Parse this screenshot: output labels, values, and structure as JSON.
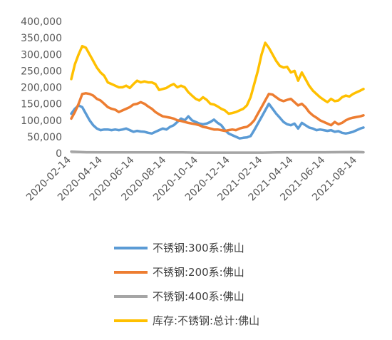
{
  "chart_data": {
    "type": "line",
    "title": "",
    "xlabel": "",
    "ylabel": "",
    "ylim": [
      0,
      400000
    ],
    "y_ticks": [
      "0",
      "50,000",
      "100,000",
      "150,000",
      "200,000",
      "250,000",
      "300,000",
      "350,000",
      "400,000"
    ],
    "x_ticks": [
      "2020-02-14",
      "2020-04-14",
      "2020-06-14",
      "2020-08-14",
      "2020-10-14",
      "2020-12-14",
      "2021-02-14",
      "2021-04-14",
      "2021-06-14",
      "2021-08-14"
    ],
    "x_range": [
      "2020-02-14",
      "2021-08-26"
    ],
    "grid": false,
    "legend_position": "bottom",
    "series": [
      {
        "name": "不锈钢:300系:佛山",
        "color": "#5B9BD5",
        "points": [
          [
            "2020-02-14",
            120000
          ],
          [
            "2020-02-21",
            135000
          ],
          [
            "2020-02-28",
            145000
          ],
          [
            "2020-03-06",
            140000
          ],
          [
            "2020-03-13",
            120000
          ],
          [
            "2020-03-20",
            100000
          ],
          [
            "2020-03-27",
            85000
          ],
          [
            "2020-04-03",
            75000
          ],
          [
            "2020-04-10",
            70000
          ],
          [
            "2020-04-17",
            72000
          ],
          [
            "2020-04-24",
            72000
          ],
          [
            "2020-05-01",
            70000
          ],
          [
            "2020-05-08",
            72000
          ],
          [
            "2020-05-15",
            70000
          ],
          [
            "2020-05-22",
            72000
          ],
          [
            "2020-05-29",
            75000
          ],
          [
            "2020-06-05",
            70000
          ],
          [
            "2020-06-12",
            65000
          ],
          [
            "2020-06-19",
            68000
          ],
          [
            "2020-06-26",
            66000
          ],
          [
            "2020-07-03",
            65000
          ],
          [
            "2020-07-10",
            62000
          ],
          [
            "2020-07-17",
            60000
          ],
          [
            "2020-07-24",
            65000
          ],
          [
            "2020-07-31",
            70000
          ],
          [
            "2020-08-07",
            75000
          ],
          [
            "2020-08-14",
            72000
          ],
          [
            "2020-08-21",
            80000
          ],
          [
            "2020-08-28",
            85000
          ],
          [
            "2020-09-04",
            95000
          ],
          [
            "2020-09-11",
            105000
          ],
          [
            "2020-09-18",
            100000
          ],
          [
            "2020-09-25",
            112000
          ],
          [
            "2020-10-02",
            100000
          ],
          [
            "2020-10-09",
            95000
          ],
          [
            "2020-10-16",
            90000
          ],
          [
            "2020-10-23",
            88000
          ],
          [
            "2020-10-30",
            90000
          ],
          [
            "2020-11-06",
            95000
          ],
          [
            "2020-11-13",
            102000
          ],
          [
            "2020-11-20",
            92000
          ],
          [
            "2020-11-27",
            85000
          ],
          [
            "2020-12-04",
            70000
          ],
          [
            "2020-12-11",
            60000
          ],
          [
            "2020-12-18",
            55000
          ],
          [
            "2020-12-25",
            50000
          ],
          [
            "2021-01-01",
            45000
          ],
          [
            "2021-01-08",
            47000
          ],
          [
            "2021-01-15",
            48000
          ],
          [
            "2021-01-22",
            52000
          ],
          [
            "2021-01-29",
            70000
          ],
          [
            "2021-02-05",
            90000
          ],
          [
            "2021-02-12",
            110000
          ],
          [
            "2021-02-19",
            130000
          ],
          [
            "2021-02-26",
            150000
          ],
          [
            "2021-03-05",
            135000
          ],
          [
            "2021-03-12",
            120000
          ],
          [
            "2021-03-19",
            108000
          ],
          [
            "2021-03-26",
            95000
          ],
          [
            "2021-04-02",
            88000
          ],
          [
            "2021-04-09",
            85000
          ],
          [
            "2021-04-16",
            90000
          ],
          [
            "2021-04-23",
            75000
          ],
          [
            "2021-04-30",
            92000
          ],
          [
            "2021-05-07",
            85000
          ],
          [
            "2021-05-14",
            78000
          ],
          [
            "2021-05-21",
            75000
          ],
          [
            "2021-05-28",
            70000
          ],
          [
            "2021-06-04",
            72000
          ],
          [
            "2021-06-11",
            70000
          ],
          [
            "2021-06-18",
            68000
          ],
          [
            "2021-06-25",
            70000
          ],
          [
            "2021-07-02",
            65000
          ],
          [
            "2021-07-09",
            67000
          ],
          [
            "2021-07-16",
            62000
          ],
          [
            "2021-07-23",
            60000
          ],
          [
            "2021-07-30",
            62000
          ],
          [
            "2021-08-06",
            65000
          ],
          [
            "2021-08-13",
            70000
          ],
          [
            "2021-08-20",
            75000
          ],
          [
            "2021-08-26",
            78000
          ]
        ]
      },
      {
        "name": "不锈钢:200系:佛山",
        "color": "#ED7D31",
        "points": [
          [
            "2020-02-14",
            105000
          ],
          [
            "2020-02-21",
            125000
          ],
          [
            "2020-02-28",
            150000
          ],
          [
            "2020-03-06",
            180000
          ],
          [
            "2020-03-13",
            182000
          ],
          [
            "2020-03-20",
            180000
          ],
          [
            "2020-03-27",
            175000
          ],
          [
            "2020-04-03",
            165000
          ],
          [
            "2020-04-10",
            160000
          ],
          [
            "2020-04-17",
            150000
          ],
          [
            "2020-04-24",
            140000
          ],
          [
            "2020-05-01",
            135000
          ],
          [
            "2020-05-08",
            132000
          ],
          [
            "2020-05-15",
            125000
          ],
          [
            "2020-05-22",
            130000
          ],
          [
            "2020-05-29",
            135000
          ],
          [
            "2020-06-05",
            140000
          ],
          [
            "2020-06-12",
            148000
          ],
          [
            "2020-06-19",
            150000
          ],
          [
            "2020-06-26",
            155000
          ],
          [
            "2020-07-03",
            150000
          ],
          [
            "2020-07-10",
            142000
          ],
          [
            "2020-07-17",
            135000
          ],
          [
            "2020-07-24",
            125000
          ],
          [
            "2020-07-31",
            118000
          ],
          [
            "2020-08-07",
            112000
          ],
          [
            "2020-08-14",
            110000
          ],
          [
            "2020-08-21",
            108000
          ],
          [
            "2020-08-28",
            105000
          ],
          [
            "2020-09-04",
            100000
          ],
          [
            "2020-09-11",
            98000
          ],
          [
            "2020-09-18",
            95000
          ],
          [
            "2020-09-25",
            92000
          ],
          [
            "2020-10-02",
            90000
          ],
          [
            "2020-10-09",
            88000
          ],
          [
            "2020-10-16",
            85000
          ],
          [
            "2020-10-23",
            80000
          ],
          [
            "2020-10-30",
            78000
          ],
          [
            "2020-11-06",
            75000
          ],
          [
            "2020-11-13",
            72000
          ],
          [
            "2020-11-20",
            72000
          ],
          [
            "2020-11-27",
            70000
          ],
          [
            "2020-12-04",
            68000
          ],
          [
            "2020-12-11",
            70000
          ],
          [
            "2020-12-18",
            72000
          ],
          [
            "2020-12-25",
            70000
          ],
          [
            "2021-01-01",
            75000
          ],
          [
            "2021-01-08",
            78000
          ],
          [
            "2021-01-15",
            80000
          ],
          [
            "2021-01-22",
            88000
          ],
          [
            "2021-01-29",
            100000
          ],
          [
            "2021-02-05",
            120000
          ],
          [
            "2021-02-12",
            140000
          ],
          [
            "2021-02-19",
            160000
          ],
          [
            "2021-02-26",
            180000
          ],
          [
            "2021-03-05",
            178000
          ],
          [
            "2021-03-12",
            170000
          ],
          [
            "2021-03-19",
            162000
          ],
          [
            "2021-03-26",
            158000
          ],
          [
            "2021-04-02",
            162000
          ],
          [
            "2021-04-09",
            165000
          ],
          [
            "2021-04-16",
            155000
          ],
          [
            "2021-04-23",
            145000
          ],
          [
            "2021-04-30",
            150000
          ],
          [
            "2021-05-07",
            140000
          ],
          [
            "2021-05-14",
            125000
          ],
          [
            "2021-05-21",
            115000
          ],
          [
            "2021-05-28",
            108000
          ],
          [
            "2021-06-04",
            100000
          ],
          [
            "2021-06-11",
            95000
          ],
          [
            "2021-06-18",
            90000
          ],
          [
            "2021-06-25",
            85000
          ],
          [
            "2021-07-02",
            95000
          ],
          [
            "2021-07-09",
            88000
          ],
          [
            "2021-07-16",
            92000
          ],
          [
            "2021-07-23",
            100000
          ],
          [
            "2021-07-30",
            105000
          ],
          [
            "2021-08-06",
            108000
          ],
          [
            "2021-08-13",
            110000
          ],
          [
            "2021-08-20",
            112000
          ],
          [
            "2021-08-26",
            115000
          ]
        ]
      },
      {
        "name": "不锈钢:400系:佛山",
        "color": "#A5A5A5",
        "points": [
          [
            "2020-02-14",
            5000
          ],
          [
            "2020-03-14",
            3000
          ],
          [
            "2020-04-14",
            2500
          ],
          [
            "2020-05-14",
            2500
          ],
          [
            "2020-06-14",
            2500
          ],
          [
            "2020-07-14",
            2500
          ],
          [
            "2020-08-14",
            2500
          ],
          [
            "2020-09-14",
            2500
          ],
          [
            "2020-10-14",
            2000
          ],
          [
            "2020-11-14",
            2000
          ],
          [
            "2020-12-14",
            2000
          ],
          [
            "2021-01-14",
            2000
          ],
          [
            "2021-02-14",
            2000
          ],
          [
            "2021-03-14",
            2500
          ],
          [
            "2021-04-14",
            3000
          ],
          [
            "2021-05-14",
            3000
          ],
          [
            "2021-06-14",
            3000
          ],
          [
            "2021-07-14",
            3500
          ],
          [
            "2021-08-14",
            4000
          ],
          [
            "2021-08-26",
            3000
          ]
        ]
      },
      {
        "name": "库存:不锈钢:总计:佛山",
        "color": "#FFC000",
        "points": [
          [
            "2020-02-14",
            225000
          ],
          [
            "2020-02-21",
            270000
          ],
          [
            "2020-02-28",
            300000
          ],
          [
            "2020-03-06",
            325000
          ],
          [
            "2020-03-13",
            320000
          ],
          [
            "2020-03-20",
            300000
          ],
          [
            "2020-03-27",
            280000
          ],
          [
            "2020-04-03",
            260000
          ],
          [
            "2020-04-10",
            245000
          ],
          [
            "2020-04-17",
            235000
          ],
          [
            "2020-04-24",
            215000
          ],
          [
            "2020-05-01",
            210000
          ],
          [
            "2020-05-08",
            205000
          ],
          [
            "2020-05-15",
            200000
          ],
          [
            "2020-05-22",
            200000
          ],
          [
            "2020-05-29",
            205000
          ],
          [
            "2020-06-05",
            198000
          ],
          [
            "2020-06-12",
            210000
          ],
          [
            "2020-06-19",
            220000
          ],
          [
            "2020-06-26",
            215000
          ],
          [
            "2020-07-03",
            218000
          ],
          [
            "2020-07-10",
            215000
          ],
          [
            "2020-07-17",
            215000
          ],
          [
            "2020-07-24",
            210000
          ],
          [
            "2020-07-31",
            192000
          ],
          [
            "2020-08-07",
            195000
          ],
          [
            "2020-08-14",
            198000
          ],
          [
            "2020-08-21",
            205000
          ],
          [
            "2020-08-28",
            210000
          ],
          [
            "2020-09-04",
            200000
          ],
          [
            "2020-09-11",
            205000
          ],
          [
            "2020-09-18",
            200000
          ],
          [
            "2020-09-25",
            185000
          ],
          [
            "2020-10-02",
            175000
          ],
          [
            "2020-10-09",
            165000
          ],
          [
            "2020-10-16",
            160000
          ],
          [
            "2020-10-23",
            170000
          ],
          [
            "2020-10-30",
            162000
          ],
          [
            "2020-11-06",
            150000
          ],
          [
            "2020-11-13",
            148000
          ],
          [
            "2020-11-20",
            142000
          ],
          [
            "2020-11-27",
            135000
          ],
          [
            "2020-12-04",
            130000
          ],
          [
            "2020-12-11",
            120000
          ],
          [
            "2020-12-18",
            122000
          ],
          [
            "2020-12-25",
            125000
          ],
          [
            "2021-01-01",
            130000
          ],
          [
            "2021-01-08",
            135000
          ],
          [
            "2021-01-15",
            145000
          ],
          [
            "2021-01-22",
            170000
          ],
          [
            "2021-01-29",
            210000
          ],
          [
            "2021-02-05",
            250000
          ],
          [
            "2021-02-12",
            300000
          ],
          [
            "2021-02-19",
            335000
          ],
          [
            "2021-02-26",
            320000
          ],
          [
            "2021-03-05",
            300000
          ],
          [
            "2021-03-12",
            280000
          ],
          [
            "2021-03-19",
            265000
          ],
          [
            "2021-03-26",
            260000
          ],
          [
            "2021-04-02",
            262000
          ],
          [
            "2021-04-09",
            245000
          ],
          [
            "2021-04-16",
            250000
          ],
          [
            "2021-04-23",
            220000
          ],
          [
            "2021-04-30",
            245000
          ],
          [
            "2021-05-07",
            225000
          ],
          [
            "2021-05-14",
            205000
          ],
          [
            "2021-05-21",
            190000
          ],
          [
            "2021-05-28",
            180000
          ],
          [
            "2021-06-04",
            170000
          ],
          [
            "2021-06-11",
            162000
          ],
          [
            "2021-06-18",
            155000
          ],
          [
            "2021-06-25",
            165000
          ],
          [
            "2021-07-02",
            158000
          ],
          [
            "2021-07-09",
            160000
          ],
          [
            "2021-07-16",
            170000
          ],
          [
            "2021-07-23",
            175000
          ],
          [
            "2021-07-30",
            172000
          ],
          [
            "2021-08-06",
            180000
          ],
          [
            "2021-08-13",
            185000
          ],
          [
            "2021-08-20",
            190000
          ],
          [
            "2021-08-26",
            195000
          ]
        ]
      }
    ]
  }
}
